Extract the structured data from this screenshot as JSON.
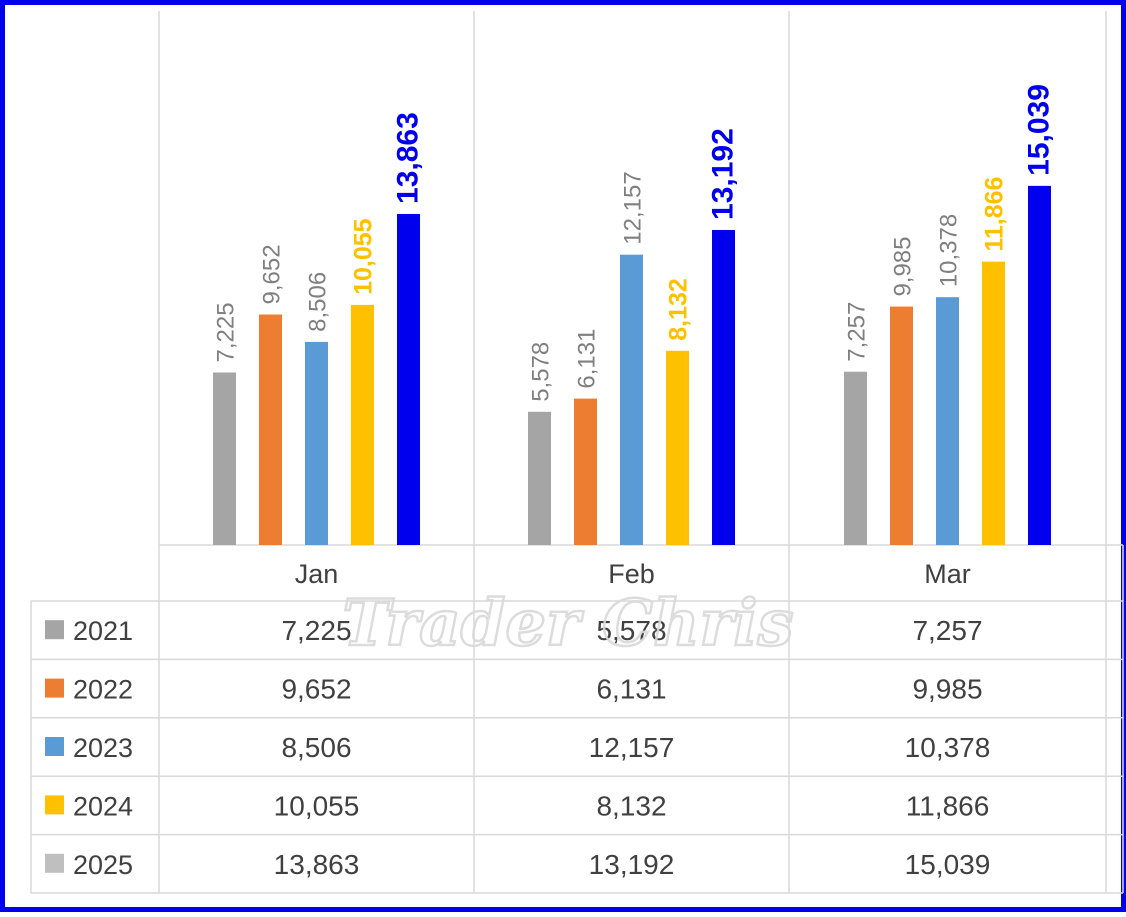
{
  "colors": {
    "frame": "#0000ee",
    "grid": "#d9d9d9",
    "label_gray": "#7f7f7f",
    "watermark": "#d9d9d9"
  },
  "watermark": "Trader Chris",
  "chart_data": {
    "type": "bar",
    "categories": [
      "Jan",
      "Feb",
      "Mar"
    ],
    "series": [
      {
        "name": "2021",
        "color": "#a5a5a5",
        "label_color": "#7f7f7f",
        "label_bold": false,
        "values": [
          7225,
          5578,
          7257
        ],
        "labels": [
          "7,225",
          "5,578",
          "7,257"
        ]
      },
      {
        "name": "2022",
        "color": "#ed7d31",
        "label_color": "#7f7f7f",
        "label_bold": false,
        "values": [
          9652,
          6131,
          9985
        ],
        "labels": [
          "9,652",
          "6,131",
          "9,985"
        ]
      },
      {
        "name": "2023",
        "color": "#5b9bd5",
        "label_color": "#7f7f7f",
        "label_bold": false,
        "values": [
          8506,
          12157,
          10378
        ],
        "labels": [
          "8,506",
          "12,157",
          "10,378"
        ]
      },
      {
        "name": "2024",
        "color": "#ffc000",
        "label_color": "#ffc000",
        "label_bold": true,
        "values": [
          10055,
          8132,
          11866
        ],
        "labels": [
          "10,055",
          "8,132",
          "11,866"
        ]
      },
      {
        "name": "2025",
        "color": "#0000ee",
        "label_color": "#0000ee",
        "label_bold": true,
        "legend_color": "#bfbfbf",
        "values": [
          13863,
          13192,
          15039
        ],
        "labels": [
          "13,863",
          "13,192",
          "15,039"
        ]
      }
    ],
    "ylim": [
      0,
      22000
    ],
    "grid": "vertical",
    "legend": "data-table"
  }
}
